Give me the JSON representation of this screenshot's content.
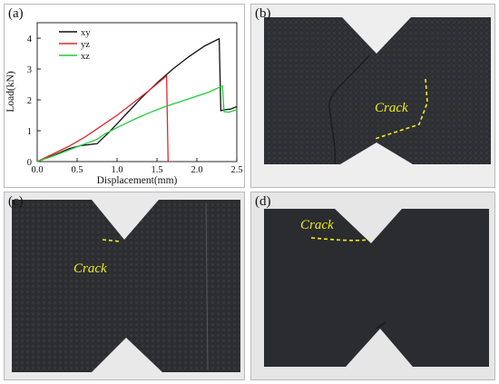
{
  "panels": [
    {
      "id": "a",
      "label": "(a)"
    },
    {
      "id": "b",
      "label": "(b)",
      "annotation": "Crack"
    },
    {
      "id": "c",
      "label": "(c)",
      "annotation": "Crack"
    },
    {
      "id": "d",
      "label": "(d)",
      "annotation": "Crack"
    }
  ],
  "colors": {
    "xy": "#111111",
    "yz": "#e3262e",
    "xz": "#22cc3a",
    "crack": "#f2ec1a",
    "specimen": "#2e2f33"
  },
  "chart_data": {
    "type": "line",
    "title": "",
    "xlabel": "Displacement(mm)",
    "ylabel": "Load(kN)",
    "xlim": [
      0,
      2.5
    ],
    "ylim": [
      0,
      4.5
    ],
    "xticks": [
      0.0,
      0.5,
      1.0,
      1.5,
      2.0,
      2.5
    ],
    "xtick_labels": [
      "0.0",
      "0.5",
      "1.0",
      "1.5",
      "2.0",
      "2.5"
    ],
    "yticks": [
      0,
      1,
      2,
      3,
      4
    ],
    "ytick_labels": [
      "0",
      "1",
      "2",
      "3",
      "4"
    ],
    "grid": false,
    "legend": "top-left",
    "series": [
      {
        "name": "xy",
        "color": "#111111",
        "points": [
          [
            0,
            0
          ],
          [
            0.2,
            0.2
          ],
          [
            0.4,
            0.42
          ],
          [
            0.55,
            0.52
          ],
          [
            0.75,
            0.58
          ],
          [
            0.9,
            0.95
          ],
          [
            1.1,
            1.5
          ],
          [
            1.3,
            2.05
          ],
          [
            1.5,
            2.55
          ],
          [
            1.7,
            3.0
          ],
          [
            1.9,
            3.4
          ],
          [
            2.1,
            3.75
          ],
          [
            2.28,
            3.98
          ],
          [
            2.3,
            1.65
          ],
          [
            2.35,
            1.68
          ],
          [
            2.42,
            1.7
          ],
          [
            2.5,
            1.78
          ]
        ]
      },
      {
        "name": "yz",
        "color": "#e3262e",
        "points": [
          [
            0,
            0
          ],
          [
            0.2,
            0.25
          ],
          [
            0.4,
            0.5
          ],
          [
            0.6,
            0.8
          ],
          [
            0.8,
            1.15
          ],
          [
            1.0,
            1.5
          ],
          [
            1.2,
            1.9
          ],
          [
            1.4,
            2.3
          ],
          [
            1.62,
            2.78
          ],
          [
            1.64,
            0
          ]
        ]
      },
      {
        "name": "xz",
        "color": "#22cc3a",
        "points": [
          [
            0,
            0
          ],
          [
            0.2,
            0.18
          ],
          [
            0.4,
            0.38
          ],
          [
            0.6,
            0.58
          ],
          [
            0.75,
            0.72
          ],
          [
            0.85,
            0.9
          ],
          [
            1.0,
            1.1
          ],
          [
            1.2,
            1.35
          ],
          [
            1.4,
            1.58
          ],
          [
            1.6,
            1.78
          ],
          [
            1.8,
            1.95
          ],
          [
            2.0,
            2.12
          ],
          [
            2.15,
            2.25
          ],
          [
            2.32,
            2.45
          ],
          [
            2.34,
            1.62
          ],
          [
            2.4,
            1.6
          ],
          [
            2.5,
            1.68
          ]
        ]
      }
    ]
  }
}
